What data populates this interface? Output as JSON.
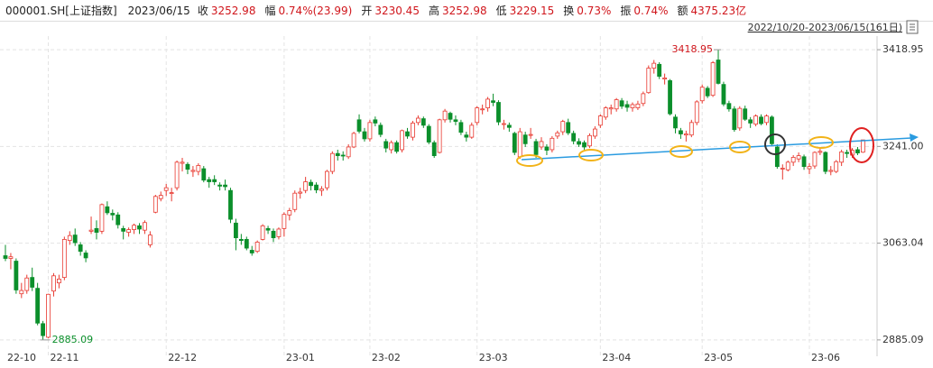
{
  "header": {
    "symbol": "000001.SH[上证指数]",
    "date": "2023/06/15",
    "fields": [
      {
        "label": "收",
        "value": "3252.98"
      },
      {
        "label": "幅",
        "value": "0.74%(23.99)"
      },
      {
        "label": "开",
        "value": "3230.45"
      },
      {
        "label": "高",
        "value": "3252.98"
      },
      {
        "label": "低",
        "value": "3229.15"
      },
      {
        "label": "换",
        "value": "0.73%"
      },
      {
        "label": "振",
        "value": "0.74%"
      },
      {
        "label": "额",
        "value": "4375.23亿"
      }
    ]
  },
  "chart_data": {
    "type": "candlestick",
    "range_label": "2022/10/20-2023/06/15(161日)",
    "up_color": "#e8382f",
    "down_color": "#0b8f2b",
    "grid": true,
    "ylim": [
      2855,
      3444
    ],
    "yticks": [
      2885.09,
      3063.04,
      {
        "value": 3241,
        "label": "3241.00"
      },
      3418.95
    ],
    "xticks": [
      {
        "value": 0,
        "label": "22-10"
      },
      {
        "value": 8,
        "label": "22-11"
      },
      {
        "value": 30,
        "label": "22-12"
      },
      {
        "value": 52,
        "label": "23-01"
      },
      {
        "value": 68,
        "label": "23-02"
      },
      {
        "value": 88,
        "label": "23-03"
      },
      {
        "value": 111,
        "label": "23-04"
      },
      {
        "value": 130,
        "label": "23-05"
      },
      {
        "value": 150,
        "label": "23-06"
      }
    ],
    "high_label": 3418.95,
    "low_label": 2885.09,
    "candles": [
      [
        3040,
        3060,
        3030,
        3035
      ],
      [
        3035,
        3045,
        3015,
        3038
      ],
      [
        3030,
        3035,
        2970,
        2977
      ],
      [
        2970,
        2990,
        2962,
        2976
      ],
      [
        2976,
        3005,
        2970,
        2999
      ],
      [
        3000,
        3018,
        2975,
        2982
      ],
      [
        2980,
        2990,
        2912,
        2916
      ],
      [
        2915,
        2920,
        2885.09,
        2893
      ],
      [
        2890,
        2970,
        2888,
        2969
      ],
      [
        2975,
        3008,
        2965,
        3003
      ],
      [
        2990,
        3005,
        2980,
        2997
      ],
      [
        3000,
        3075,
        2995,
        3070
      ],
      [
        3068,
        3085,
        3060,
        3077
      ],
      [
        3078,
        3090,
        3058,
        3064
      ],
      [
        3060,
        3065,
        3040,
        3048
      ],
      [
        3045,
        3050,
        3028,
        3036
      ],
      [
        3085,
        3112,
        3080,
        3087
      ],
      [
        3090,
        3105,
        3070,
        3083
      ],
      [
        3085,
        3136,
        3080,
        3134
      ],
      [
        3130,
        3140,
        3115,
        3119
      ],
      [
        3118,
        3125,
        3105,
        3115
      ],
      [
        3115,
        3120,
        3090,
        3097
      ],
      [
        3090,
        3095,
        3070,
        3085
      ],
      [
        3083,
        3092,
        3075,
        3088
      ],
      [
        3088,
        3099,
        3080,
        3096
      ],
      [
        3095,
        3100,
        3080,
        3089
      ],
      [
        3087,
        3105,
        3080,
        3101
      ],
      [
        3060,
        3085,
        3055,
        3078
      ],
      [
        3120,
        3152,
        3118,
        3149
      ],
      [
        3145,
        3158,
        3140,
        3151
      ],
      [
        3160,
        3172,
        3150,
        3165
      ],
      [
        3155,
        3165,
        3140,
        3156
      ],
      [
        3165,
        3215,
        3160,
        3212
      ],
      [
        3210,
        3220,
        3195,
        3212
      ],
      [
        3208,
        3212,
        3190,
        3199
      ],
      [
        3195,
        3205,
        3185,
        3197
      ],
      [
        3195,
        3210,
        3188,
        3206
      ],
      [
        3200,
        3205,
        3175,
        3179
      ],
      [
        3180,
        3185,
        3165,
        3176
      ],
      [
        3180,
        3188,
        3170,
        3176
      ],
      [
        3170,
        3175,
        3160,
        3168
      ],
      [
        3170,
        3180,
        3160,
        3167
      ],
      [
        3160,
        3165,
        3100,
        3107
      ],
      [
        3100,
        3108,
        3050,
        3073
      ],
      [
        3070,
        3080,
        3060,
        3068
      ],
      [
        3070,
        3075,
        3050,
        3054
      ],
      [
        3050,
        3058,
        3040,
        3045
      ],
      [
        3048,
        3068,
        3045,
        3065
      ],
      [
        3070,
        3098,
        3068,
        3095
      ],
      [
        3090,
        3095,
        3080,
        3087
      ],
      [
        3085,
        3090,
        3065,
        3073
      ],
      [
        3075,
        3092,
        3070,
        3089
      ],
      [
        3090,
        3120,
        3075,
        3116
      ],
      [
        3115,
        3128,
        3105,
        3123
      ],
      [
        3125,
        3160,
        3120,
        3155
      ],
      [
        3155,
        3165,
        3145,
        3157
      ],
      [
        3160,
        3185,
        3155,
        3176
      ],
      [
        3175,
        3180,
        3160,
        3169
      ],
      [
        3170,
        3175,
        3155,
        3161
      ],
      [
        3160,
        3168,
        3150,
        3163
      ],
      [
        3165,
        3198,
        3160,
        3195
      ],
      [
        3195,
        3232,
        3190,
        3228
      ],
      [
        3228,
        3235,
        3215,
        3224
      ],
      [
        3225,
        3232,
        3215,
        3224
      ],
      [
        3222,
        3245,
        3218,
        3240
      ],
      [
        3240,
        3268,
        3238,
        3265
      ],
      [
        3290,
        3300,
        3265,
        3269
      ],
      [
        3268,
        3275,
        3250,
        3255
      ],
      [
        3255,
        3290,
        3250,
        3285
      ],
      [
        3290,
        3296,
        3278,
        3284
      ],
      [
        3280,
        3285,
        3258,
        3263
      ],
      [
        3250,
        3255,
        3230,
        3238
      ],
      [
        3235,
        3252,
        3228,
        3248
      ],
      [
        3248,
        3252,
        3228,
        3232
      ],
      [
        3235,
        3272,
        3230,
        3270
      ],
      [
        3268,
        3275,
        3255,
        3260
      ],
      [
        3258,
        3288,
        3252,
        3284
      ],
      [
        3285,
        3298,
        3280,
        3293
      ],
      [
        3292,
        3296,
        3275,
        3280
      ],
      [
        3278,
        3282,
        3245,
        3249
      ],
      [
        3248,
        3252,
        3220,
        3224
      ],
      [
        3230,
        3292,
        3228,
        3290
      ],
      [
        3290,
        3310,
        3285,
        3306
      ],
      [
        3302,
        3305,
        3285,
        3291
      ],
      [
        3290,
        3298,
        3280,
        3287
      ],
      [
        3285,
        3290,
        3262,
        3267
      ],
      [
        3262,
        3268,
        3250,
        3258
      ],
      [
        3258,
        3285,
        3255,
        3280
      ],
      [
        3285,
        3315,
        3280,
        3312
      ],
      [
        3310,
        3318,
        3300,
        3310
      ],
      [
        3312,
        3332,
        3305,
        3328
      ],
      [
        3325,
        3338,
        3315,
        3322
      ],
      [
        3322,
        3326,
        3280,
        3286
      ],
      [
        3282,
        3290,
        3272,
        3283
      ],
      [
        3280,
        3285,
        3268,
        3276
      ],
      [
        3265,
        3268,
        3225,
        3230
      ],
      [
        3222,
        3275,
        3218,
        3268
      ],
      [
        3262,
        3268,
        3240,
        3246
      ],
      [
        3262,
        3275,
        3255,
        3263
      ],
      [
        3250,
        3255,
        3220,
        3226
      ],
      [
        3240,
        3258,
        3235,
        3250
      ],
      [
        3240,
        3245,
        3225,
        3234
      ],
      [
        3235,
        3260,
        3230,
        3256
      ],
      [
        3260,
        3270,
        3255,
        3266
      ],
      [
        3268,
        3290,
        3262,
        3287
      ],
      [
        3285,
        3292,
        3262,
        3266
      ],
      [
        3265,
        3270,
        3245,
        3251
      ],
      [
        3250,
        3256,
        3240,
        3245
      ],
      [
        3248,
        3252,
        3235,
        3240
      ],
      [
        3242,
        3265,
        3238,
        3261
      ],
      [
        3260,
        3278,
        3255,
        3273
      ],
      [
        3280,
        3300,
        3275,
        3297
      ],
      [
        3295,
        3315,
        3290,
        3312
      ],
      [
        3310,
        3318,
        3300,
        3312
      ],
      [
        3310,
        3330,
        3305,
        3327
      ],
      [
        3325,
        3330,
        3310,
        3315
      ],
      [
        3318,
        3325,
        3305,
        3313
      ],
      [
        3312,
        3322,
        3305,
        3318
      ],
      [
        3312,
        3325,
        3308,
        3319
      ],
      [
        3320,
        3342,
        3315,
        3338
      ],
      [
        3340,
        3390,
        3338,
        3385
      ],
      [
        3385,
        3400,
        3375,
        3394
      ],
      [
        3392,
        3396,
        3365,
        3370
      ],
      [
        3365,
        3375,
        3355,
        3367
      ],
      [
        3362,
        3365,
        3298,
        3301
      ],
      [
        3295,
        3300,
        3265,
        3275
      ],
      [
        3270,
        3275,
        3255,
        3264
      ],
      [
        3262,
        3270,
        3250,
        3264
      ],
      [
        3262,
        3290,
        3258,
        3285
      ],
      [
        3285,
        3326,
        3280,
        3323
      ],
      [
        3325,
        3355,
        3320,
        3350
      ],
      [
        3348,
        3352,
        3330,
        3334
      ],
      [
        3335,
        3398,
        3332,
        3395
      ],
      [
        3400,
        3418.95,
        3355,
        3357
      ],
      [
        3355,
        3360,
        3315,
        3319
      ],
      [
        3320,
        3325,
        3305,
        3310
      ],
      [
        3310,
        3315,
        3268,
        3272
      ],
      [
        3275,
        3315,
        3270,
        3311
      ],
      [
        3310,
        3316,
        3288,
        3291
      ],
      [
        3290,
        3295,
        3275,
        3284
      ],
      [
        3282,
        3300,
        3278,
        3297
      ],
      [
        3295,
        3300,
        3280,
        3283
      ],
      [
        3285,
        3300,
        3280,
        3297
      ],
      [
        3295,
        3298,
        3242,
        3246
      ],
      [
        3240,
        3245,
        3200,
        3204
      ],
      [
        3200,
        3208,
        3180,
        3201
      ],
      [
        3198,
        3215,
        3195,
        3212
      ],
      [
        3212,
        3225,
        3205,
        3221
      ],
      [
        3218,
        3230,
        3212,
        3224
      ],
      [
        3222,
        3226,
        3198,
        3204
      ],
      [
        3200,
        3210,
        3190,
        3204
      ],
      [
        3205,
        3232,
        3200,
        3230
      ],
      [
        3230,
        3240,
        3225,
        3232
      ],
      [
        3230,
        3232,
        3190,
        3195
      ],
      [
        3195,
        3205,
        3188,
        3197
      ],
      [
        3195,
        3216,
        3192,
        3213
      ],
      [
        3212,
        3235,
        3205,
        3231
      ],
      [
        3230,
        3235,
        3220,
        3228
      ],
      [
        3225,
        3238,
        3220,
        3234
      ],
      [
        3235,
        3240,
        3225,
        3229
      ],
      [
        3230.45,
        3252.98,
        3229.15,
        3252.98
      ]
    ]
  }
}
